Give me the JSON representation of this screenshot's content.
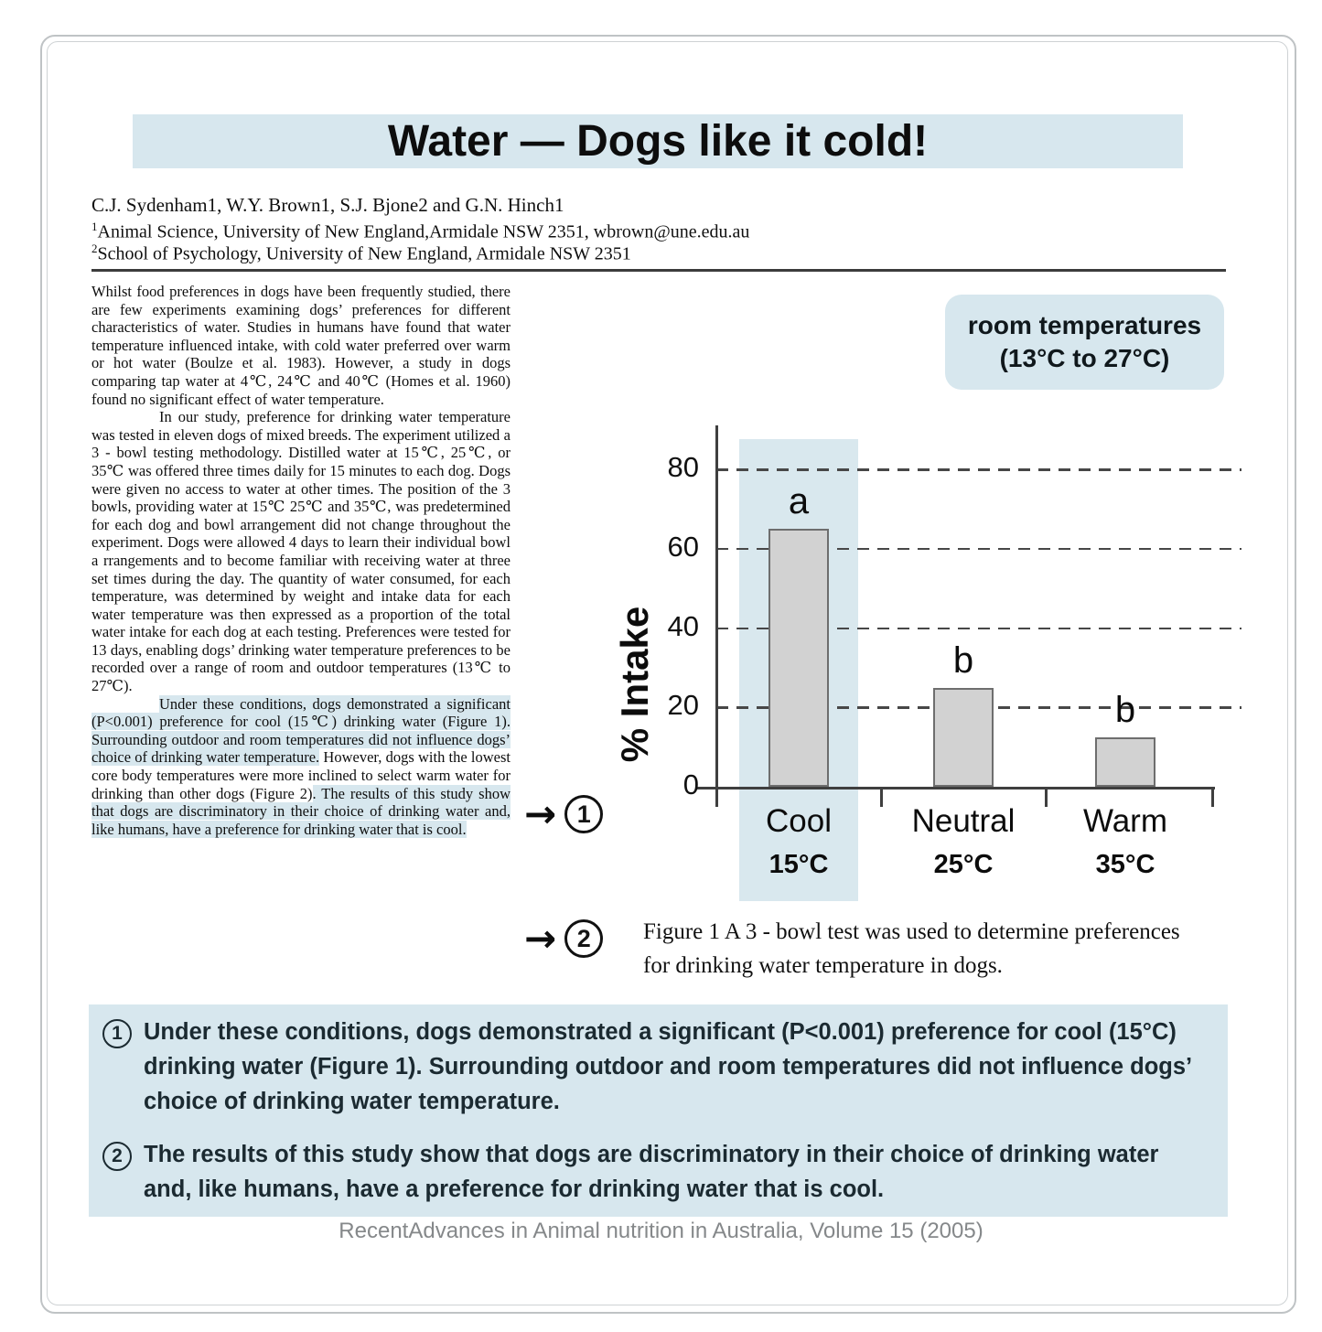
{
  "page": {
    "title": "Water — Dogs like it cold!",
    "authors": "C.J. Sydenham1, W.Y. Brown1, S.J. Bjone2 and G.N. Hinch1",
    "affiliations": [
      {
        "sup": "1",
        "text": "Animal Science, University of New England,Armidale NSW 2351, wbrown@une.edu.au"
      },
      {
        "sup": "2",
        "text": "School of Psychology, University of New England, Armidale NSW 2351"
      }
    ],
    "footer": "RecentAdvances in Animal nutrition in Australia, Volume 15 (2005)"
  },
  "article": {
    "para1": "Whilst food preferences in dogs have been frequently studied, there are few experiments examining dogs’ preferences for different characteristics of water. Studies in humans have found that water temperature influenced intake, with cold water preferred over warm or hot water (Boulze et al. 1983). However, a study in dogs comparing tap water at 4℃, 24℃ and 40℃ (Homes et al. 1960) found no significant effect of water temperature.",
    "para2": "In our study, preference for drinking water temperature was tested in eleven dogs of mixed breeds. The experiment utilized a 3 - bowl testing methodology. Distilled water at 15℃, 25℃, or 35℃ was offered three times daily for 15 minutes to each dog. Dogs were given no access to water at other times. The position of the 3 bowls, providing water at 15℃ 25℃ and 35℃, was predetermined for each dog and bowl arrangement did not change throughout the experiment. Dogs were allowed 4 days to learn their individual bowl a rrangements and to become familiar with receiving water at three set times during the day. The quantity of water consumed, for each temperature, was determined by weight and intake data for each water temperature was then expressed as a proportion of the total water intake for each dog at each testing. Preferences were tested for 13 days, enabling dogs’ drinking water temperature preferences to be recorded over a range of room and outdoor temperatures (13℃ to 27℃).",
    "para3_segments": [
      {
        "text": "Under these conditions, dogs demonstrated a significant (P<0.001) preference for cool (15℃) drinking water (Figure 1). Surrounding outdoor and room temperatures did not influence dogs’ choice of drinking water temperature.",
        "highlight": true
      },
      {
        "text": " However, dogs with the lowest core body temperatures were more inclined to select warm water for drinking than other dogs (Figure 2)",
        "highlight": false
      },
      {
        "text": ". The results of this study show that dogs are discriminatory in their choice of drinking water and, like humans, have a preference for drinking water that is cool.",
        "highlight": true
      }
    ]
  },
  "figure": {
    "room_note_line1": "room temperatures",
    "room_note_line2": "(13°C to 27°C)",
    "arrow": "→",
    "annotation1_number": "1",
    "annotation2_number": "2",
    "caption_line1": "Figure 1  A 3 - bowl test was used to determine preferences",
    "caption_line2": "for drinking water temperature in dogs."
  },
  "chart_data": {
    "type": "bar",
    "title": "",
    "xlabel": "",
    "ylabel": "% Intake",
    "categories": [
      "Cool",
      "Neutral",
      "Warm"
    ],
    "category_temps": [
      "15°C",
      "25°C",
      "35°C"
    ],
    "values": [
      65,
      25,
      12.5
    ],
    "sig_labels": [
      "a",
      "b",
      "b"
    ],
    "yticks": [
      0,
      20,
      40,
      60,
      80
    ],
    "ylim": [
      0,
      91
    ],
    "grid": "horizontal dashed lines at 20/40/60/80",
    "legend": "none",
    "highlight_category": "Cool",
    "bar_color": "#d2d2d2",
    "bar_border_color": "#6e6e6e",
    "highlight_band_color": "#d9e8ee"
  },
  "callouts": [
    {
      "number": "1",
      "text": "Under these conditions, dogs demonstrated a significant (P<0.001) preference for cool (15°C) drinking water (Figure 1). Surrounding outdoor and room temperatures did not influence dogs’ choice of drinking water temperature."
    },
    {
      "number": "2",
      "text": "The results of this study show that dogs are discriminatory in their choice of drinking water and, like humans, have a preference for drinking water that is cool."
    }
  ],
  "colors": {
    "accent_blue": "#d7e7ee",
    "bar_gray": "#d2d2d2",
    "border_gray": "#bfc3c5",
    "footer_gray": "#85888a"
  }
}
